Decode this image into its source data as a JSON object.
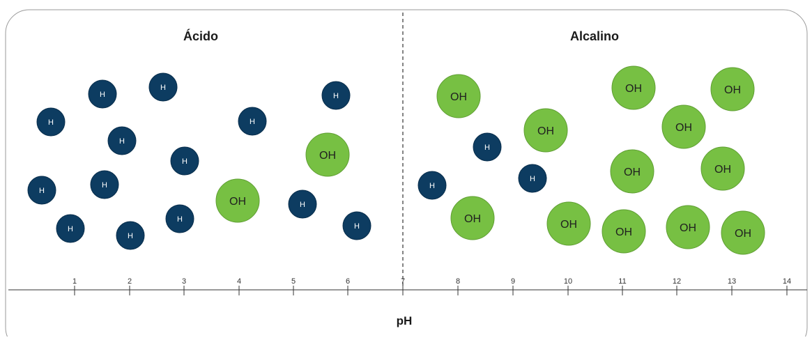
{
  "labels": {
    "acid": "Ácido",
    "alkaline": "Alcalino",
    "axis_title": "pH"
  },
  "ticks": [
    "1",
    "2",
    "3",
    "4",
    "5",
    "6",
    "7",
    "8",
    "9",
    "10",
    "11",
    "12",
    "13",
    "14"
  ],
  "particles": {
    "h_label": "H",
    "oh_label": "OH",
    "h_color": "#0d3c61",
    "oh_color": "#77c043"
  }
}
